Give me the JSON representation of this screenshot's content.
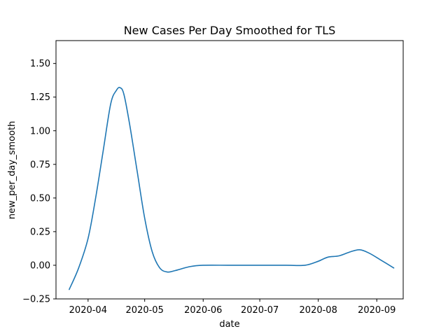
{
  "chart_data": {
    "type": "line",
    "title": "New Cases Per Day Smoothed for TLS",
    "xlabel": "date",
    "ylabel": "new_per_day_smooth",
    "xlim": [
      "2020-03-15",
      "2020-09-15"
    ],
    "ylim": [
      -0.25,
      1.67
    ],
    "x_ticks": [
      "2020-04-01",
      "2020-05-01",
      "2020-06-01",
      "2020-07-01",
      "2020-08-01",
      "2020-09-01"
    ],
    "x_tick_labels": [
      "2020-04",
      "2020-05",
      "2020-06",
      "2020-07",
      "2020-08",
      "2020-09"
    ],
    "y_ticks": [
      -0.25,
      0.0,
      0.25,
      0.5,
      0.75,
      1.0,
      1.25,
      1.5
    ],
    "y_tick_labels": [
      "−0.25",
      "0.00",
      "0.25",
      "0.50",
      "0.75",
      "1.00",
      "1.25",
      "1.50"
    ],
    "grid": false,
    "series": [
      {
        "color": "#1f77b4",
        "x": [
          "2020-03-22",
          "2020-03-27",
          "2020-04-01",
          "2020-04-05",
          "2020-04-09",
          "2020-04-13",
          "2020-04-16",
          "2020-04-18",
          "2020-04-20",
          "2020-04-23",
          "2020-04-27",
          "2020-05-01",
          "2020-05-05",
          "2020-05-09",
          "2020-05-13",
          "2020-05-17",
          "2020-05-25",
          "2020-06-01",
          "2020-06-15",
          "2020-07-01",
          "2020-07-15",
          "2020-07-25",
          "2020-08-01",
          "2020-08-06",
          "2020-08-12",
          "2020-08-18",
          "2020-08-23",
          "2020-08-28",
          "2020-09-03",
          "2020-09-10"
        ],
        "y": [
          -0.18,
          -0.02,
          0.2,
          0.5,
          0.85,
          1.2,
          1.3,
          1.32,
          1.27,
          1.05,
          0.7,
          0.35,
          0.1,
          -0.02,
          -0.05,
          -0.04,
          -0.01,
          0.0,
          0.0,
          0.0,
          0.0,
          0.0,
          0.03,
          0.06,
          0.07,
          0.1,
          0.115,
          0.09,
          0.04,
          -0.02
        ]
      }
    ]
  }
}
